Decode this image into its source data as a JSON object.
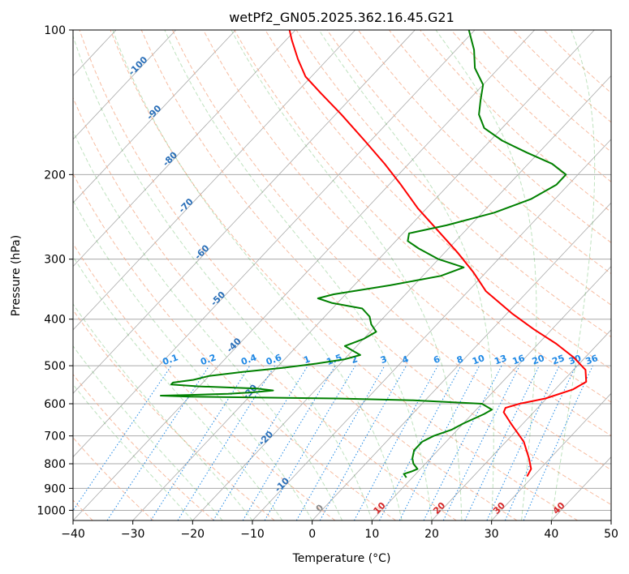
{
  "chart_data": {
    "type": "line",
    "title": "wetPf2_GN05.2025.362.16.45.G21",
    "xlabel": "Temperature (°C)",
    "ylabel": "Pressure (hPa)",
    "xlim": [
      -40,
      50
    ],
    "ylim": [
      1050,
      100
    ],
    "y_scale": "log",
    "grid": true,
    "x_ticks": [
      -40,
      -30,
      -20,
      -10,
      0,
      10,
      20,
      30,
      40,
      50
    ],
    "x_tick_labels": [
      "−40",
      "−30",
      "−20",
      "−10",
      "0",
      "10",
      "20",
      "30",
      "40",
      "50"
    ],
    "y_ticks": [
      1000,
      900,
      800,
      700,
      600,
      500,
      400,
      300,
      200,
      100
    ],
    "series": [
      {
        "role": "temperature",
        "color": "#ff0000",
        "points": [
          {
            "p": 850,
            "t": 29.0
          },
          {
            "p": 820,
            "t": 28.5
          },
          {
            "p": 780,
            "t": 26.5
          },
          {
            "p": 720,
            "t": 23.0
          },
          {
            "p": 660,
            "t": 18.0
          },
          {
            "p": 625,
            "t": 15.0
          },
          {
            "p": 612,
            "t": 14.6
          },
          {
            "p": 600,
            "t": 16.3
          },
          {
            "p": 585,
            "t": 19.8
          },
          {
            "p": 560,
            "t": 23.0
          },
          {
            "p": 540,
            "t": 24.0
          },
          {
            "p": 510,
            "t": 22.0
          },
          {
            "p": 480,
            "t": 18.0
          },
          {
            "p": 450,
            "t": 13.0
          },
          {
            "p": 420,
            "t": 7.0
          },
          {
            "p": 390,
            "t": 1.0
          },
          {
            "p": 350,
            "t": -7.0
          },
          {
            "p": 320,
            "t": -12.0
          },
          {
            "p": 290,
            "t": -18.0
          },
          {
            "p": 260,
            "t": -25.0
          },
          {
            "p": 235,
            "t": -31.5
          },
          {
            "p": 210,
            "t": -38.0
          },
          {
            "p": 190,
            "t": -44.0
          },
          {
            "p": 170,
            "t": -51.0
          },
          {
            "p": 150,
            "t": -59.0
          },
          {
            "p": 135,
            "t": -66.0
          },
          {
            "p": 125,
            "t": -71.0
          },
          {
            "p": 115,
            "t": -75.0
          },
          {
            "p": 105,
            "t": -79.0
          },
          {
            "p": 100,
            "t": -81.0
          }
        ]
      },
      {
        "role": "dewpoint",
        "color": "#008000",
        "points": [
          {
            "p": 855,
            "t": 9.0
          },
          {
            "p": 840,
            "t": 8.0
          },
          {
            "p": 830,
            "t": 8.9
          },
          {
            "p": 820,
            "t": 9.5
          },
          {
            "p": 800,
            "t": 8.0
          },
          {
            "p": 780,
            "t": 7.0
          },
          {
            "p": 750,
            "t": 6.0
          },
          {
            "p": 720,
            "t": 6.0
          },
          {
            "p": 700,
            "t": 7.0
          },
          {
            "p": 680,
            "t": 9.0
          },
          {
            "p": 660,
            "t": 10.0
          },
          {
            "p": 630,
            "t": 12.0
          },
          {
            "p": 617,
            "t": 12.6
          },
          {
            "p": 600,
            "t": 10.0
          },
          {
            "p": 590,
            "t": -2.0
          },
          {
            "p": 585,
            "t": -15.0
          },
          {
            "p": 580,
            "t": -40.0
          },
          {
            "p": 577,
            "t": -45.0
          },
          {
            "p": 575,
            "t": -40.0
          },
          {
            "p": 572,
            "t": -34.0
          },
          {
            "p": 568,
            "t": -30.0
          },
          {
            "p": 563,
            "t": -27.0
          },
          {
            "p": 558,
            "t": -30.0
          },
          {
            "p": 552,
            "t": -40.0
          },
          {
            "p": 547,
            "t": -45.0
          },
          {
            "p": 542,
            "t": -45.0
          },
          {
            "p": 535,
            "t": -42.0
          },
          {
            "p": 525,
            "t": -40.0
          },
          {
            "p": 515,
            "t": -35.0
          },
          {
            "p": 505,
            "t": -29.0
          },
          {
            "p": 495,
            "t": -24.0
          },
          {
            "p": 485,
            "t": -20.0
          },
          {
            "p": 475,
            "t": -18.0
          },
          {
            "p": 465,
            "t": -20.0
          },
          {
            "p": 455,
            "t": -22.0
          },
          {
            "p": 440,
            "t": -20.0
          },
          {
            "p": 425,
            "t": -19.0
          },
          {
            "p": 410,
            "t": -21.0
          },
          {
            "p": 395,
            "t": -22.5
          },
          {
            "p": 380,
            "t": -25.0
          },
          {
            "p": 370,
            "t": -31.0
          },
          {
            "p": 362,
            "t": -34.0
          },
          {
            "p": 355,
            "t": -32.0
          },
          {
            "p": 340,
            "t": -24.0
          },
          {
            "p": 325,
            "t": -17.0
          },
          {
            "p": 312,
            "t": -14.5
          },
          {
            "p": 300,
            "t": -20.0
          },
          {
            "p": 285,
            "t": -25.0
          },
          {
            "p": 275,
            "t": -28.0
          },
          {
            "p": 265,
            "t": -29.0
          },
          {
            "p": 255,
            "t": -24.0
          },
          {
            "p": 240,
            "t": -18.0
          },
          {
            "p": 225,
            "t": -14.0
          },
          {
            "p": 210,
            "t": -12.0
          },
          {
            "p": 200,
            "t": -12.0
          },
          {
            "p": 190,
            "t": -16.0
          },
          {
            "p": 180,
            "t": -22.0
          },
          {
            "p": 170,
            "t": -28.0
          },
          {
            "p": 160,
            "t": -33.0
          },
          {
            "p": 150,
            "t": -36.0
          },
          {
            "p": 140,
            "t": -38.0
          },
          {
            "p": 130,
            "t": -40.0
          },
          {
            "p": 120,
            "t": -44.0
          },
          {
            "p": 110,
            "t": -47.0
          },
          {
            "p": 100,
            "t": -51.0
          }
        ]
      }
    ],
    "background_lines": {
      "isotherm_step": 10,
      "isotherm_color": "#aaaaaa",
      "dry_adiabat_color": "#f4a582",
      "moist_adiabat_color": "#2ca02c",
      "mixing_ratio_color": "#1e88e5"
    },
    "isotherm_labels": [
      {
        "text": "-100",
        "t": -100,
        "color": "#2a6fb8"
      },
      {
        "text": "-90",
        "t": -90,
        "color": "#2a6fb8"
      },
      {
        "text": "-80",
        "t": -80,
        "color": "#2a6fb8"
      },
      {
        "text": "-70",
        "t": -70,
        "color": "#2a6fb8"
      },
      {
        "text": "-60",
        "t": -60,
        "color": "#2a6fb8"
      },
      {
        "text": "-50",
        "t": -50,
        "color": "#2a6fb8"
      },
      {
        "text": "-40",
        "t": -40,
        "color": "#2a6fb8"
      },
      {
        "text": "-30",
        "t": -30,
        "color": "#2a6fb8"
      },
      {
        "text": "-20",
        "t": -20,
        "color": "#2a6fb8"
      },
      {
        "text": "-10",
        "t": -10,
        "color": "#2a6fb8"
      },
      {
        "text": "0",
        "t": 0,
        "color": "#888888"
      },
      {
        "text": "10",
        "t": 10,
        "color": "#d62728"
      },
      {
        "text": "20",
        "t": 20,
        "color": "#d62728"
      },
      {
        "text": "30",
        "t": 30,
        "color": "#d62728"
      },
      {
        "text": "40",
        "t": 40,
        "color": "#d62728"
      }
    ],
    "mixing_ratio_labels": [
      "0.1",
      "0.2",
      "0.4",
      "0.6",
      "1",
      "1.5",
      "2",
      "3",
      "4",
      "6",
      "8",
      "10",
      "13",
      "16",
      "20",
      "25",
      "30",
      "36"
    ]
  }
}
